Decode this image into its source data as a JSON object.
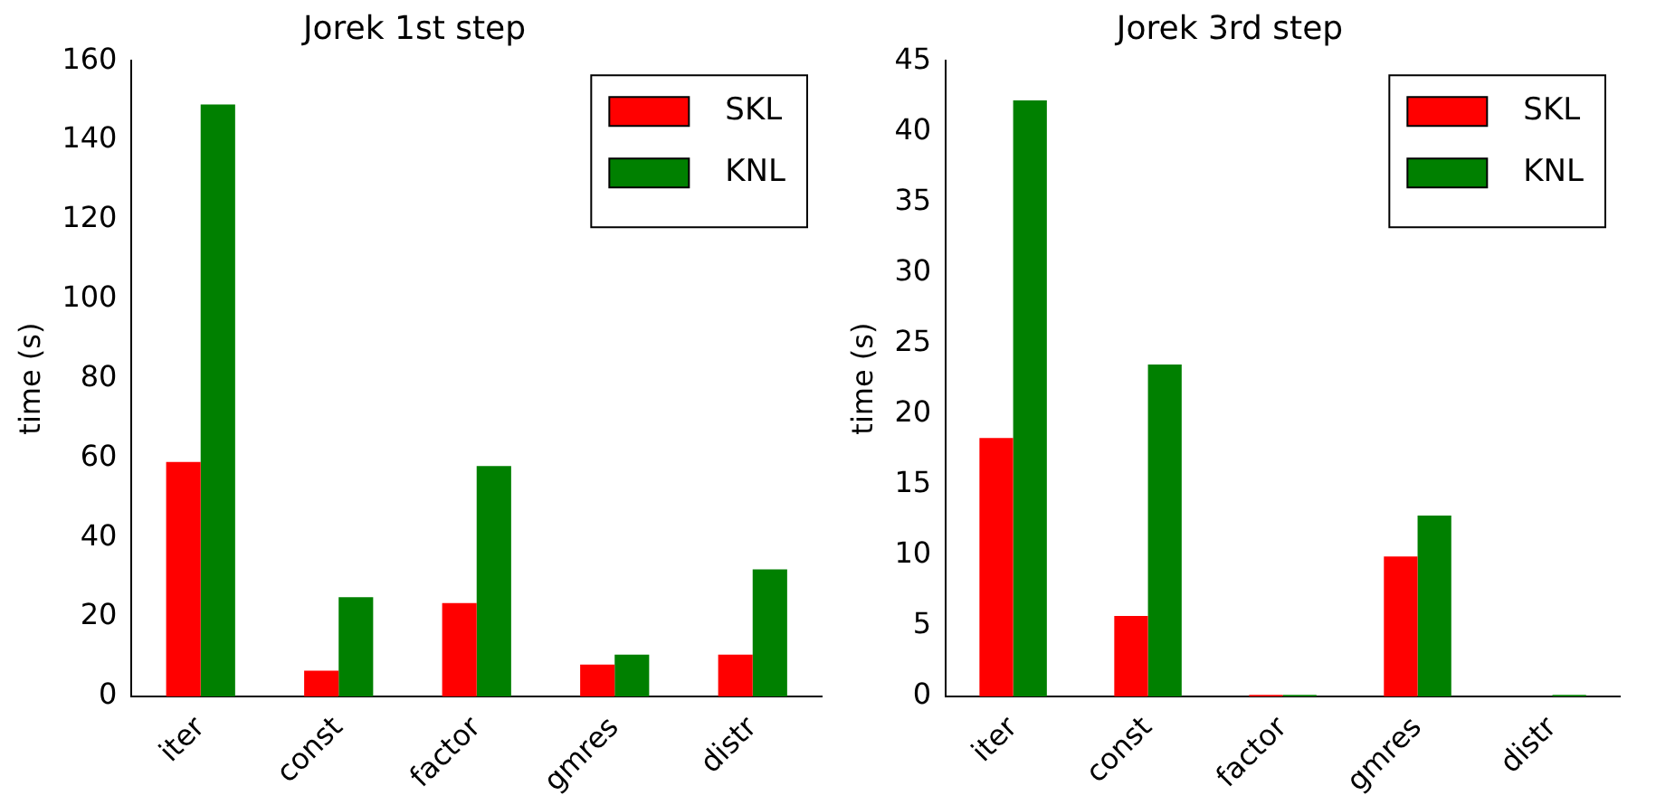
{
  "chart_data": [
    {
      "type": "bar",
      "title": "Jorek 1st step",
      "ylabel": "time (s)",
      "categories": [
        "iter",
        "const",
        "factor",
        "gmres",
        "distr"
      ],
      "series": [
        {
          "name": "SKL",
          "color": "#ff0000",
          "values": [
            59,
            6.5,
            23.5,
            8,
            10.5
          ]
        },
        {
          "name": "KNL",
          "color": "#008000",
          "values": [
            149,
            25,
            58,
            10.5,
            32
          ]
        }
      ],
      "ylim": [
        0,
        160
      ],
      "yticks": [
        0,
        20,
        40,
        60,
        80,
        100,
        120,
        140,
        160
      ],
      "grid": false,
      "legend": "top right"
    },
    {
      "type": "bar",
      "title": "Jorek 3rd step",
      "ylabel": "time (s)",
      "categories": [
        "iter",
        "const",
        "factor",
        "gmres",
        "distr"
      ],
      "series": [
        {
          "name": "SKL",
          "color": "#ff0000",
          "values": [
            18.3,
            5.7,
            0.1,
            9.9,
            0
          ]
        },
        {
          "name": "KNL",
          "color": "#008000",
          "values": [
            42.2,
            23.5,
            0.1,
            12.8,
            0.1
          ]
        }
      ],
      "ylim": [
        0,
        45
      ],
      "yticks": [
        0,
        5,
        10,
        15,
        20,
        25,
        30,
        35,
        40,
        45
      ],
      "grid": false,
      "legend": "top right"
    }
  ]
}
